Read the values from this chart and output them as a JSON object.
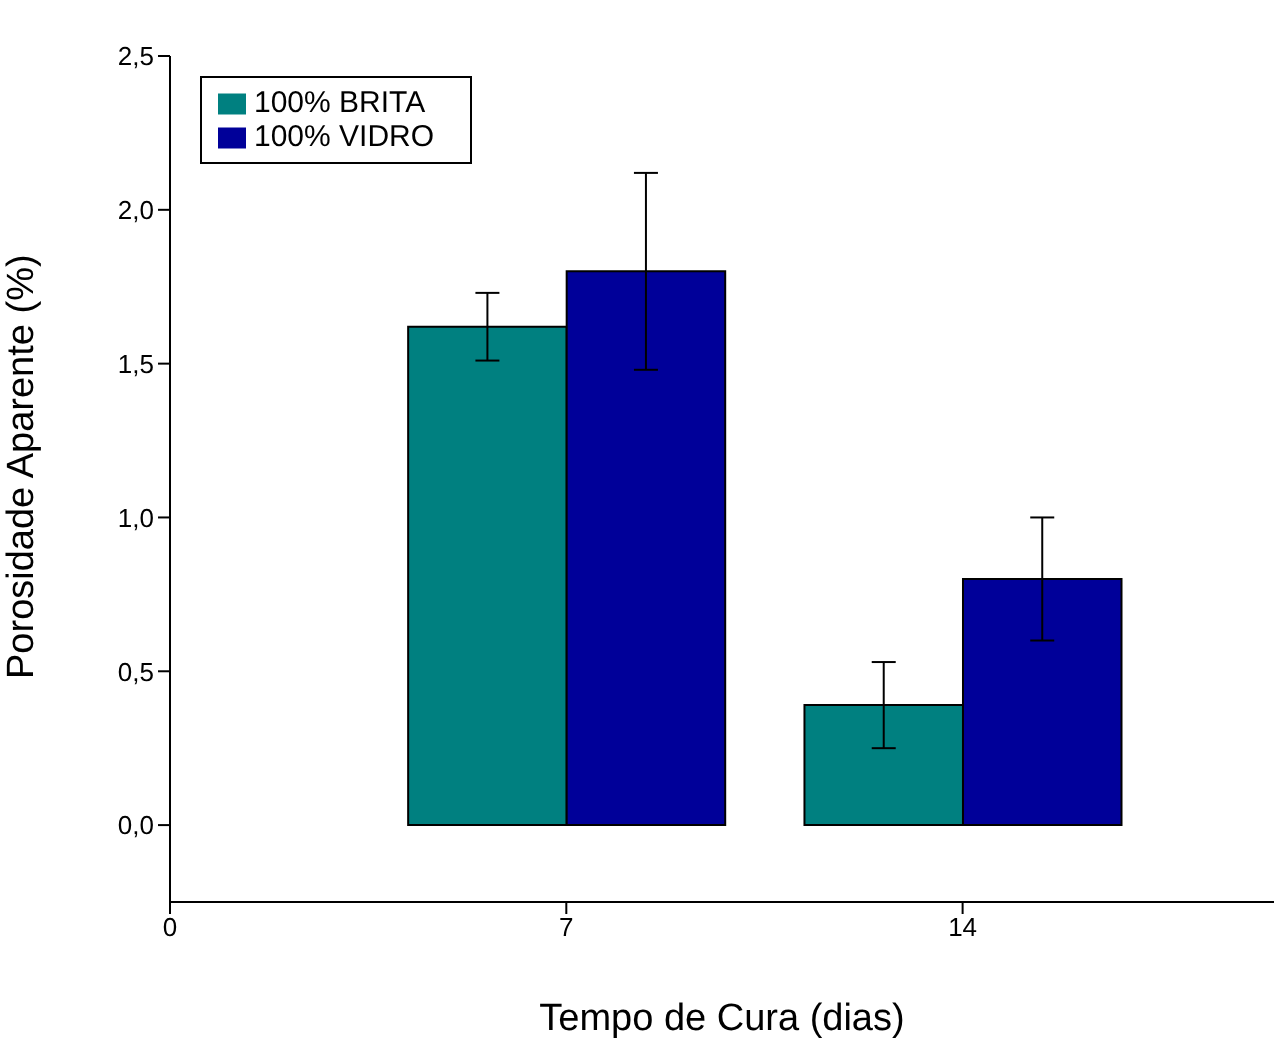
{
  "chart_data": {
    "type": "bar",
    "xlabel": "Tempo de Cura (dias)",
    "ylabel": "Porosidade Aparente (%)",
    "x": [
      7,
      14
    ],
    "series": [
      {
        "name": "100%  BRITA",
        "color": "#008080",
        "values": [
          1.62,
          0.39
        ],
        "errors": [
          0.11,
          0.14
        ]
      },
      {
        "name": "100% VIDRO",
        "color": "#000099",
        "values": [
          1.8,
          0.8
        ],
        "errors": [
          0.32,
          0.2
        ]
      }
    ],
    "xlim": [
      0,
      19.5
    ],
    "xticks": [
      0,
      7,
      14
    ],
    "ylim": [
      -0.25,
      2.5
    ],
    "yticks": [
      {
        "value": 0,
        "label": "0,0"
      },
      {
        "value": 0.5,
        "label": "0,5"
      },
      {
        "value": 1,
        "label": "1,0"
      },
      {
        "value": 1.5,
        "label": "1,5"
      },
      {
        "value": 2,
        "label": "2,0"
      },
      {
        "value": 2.5,
        "label": "2,5"
      }
    ],
    "legend": "top left",
    "grid": false
  }
}
